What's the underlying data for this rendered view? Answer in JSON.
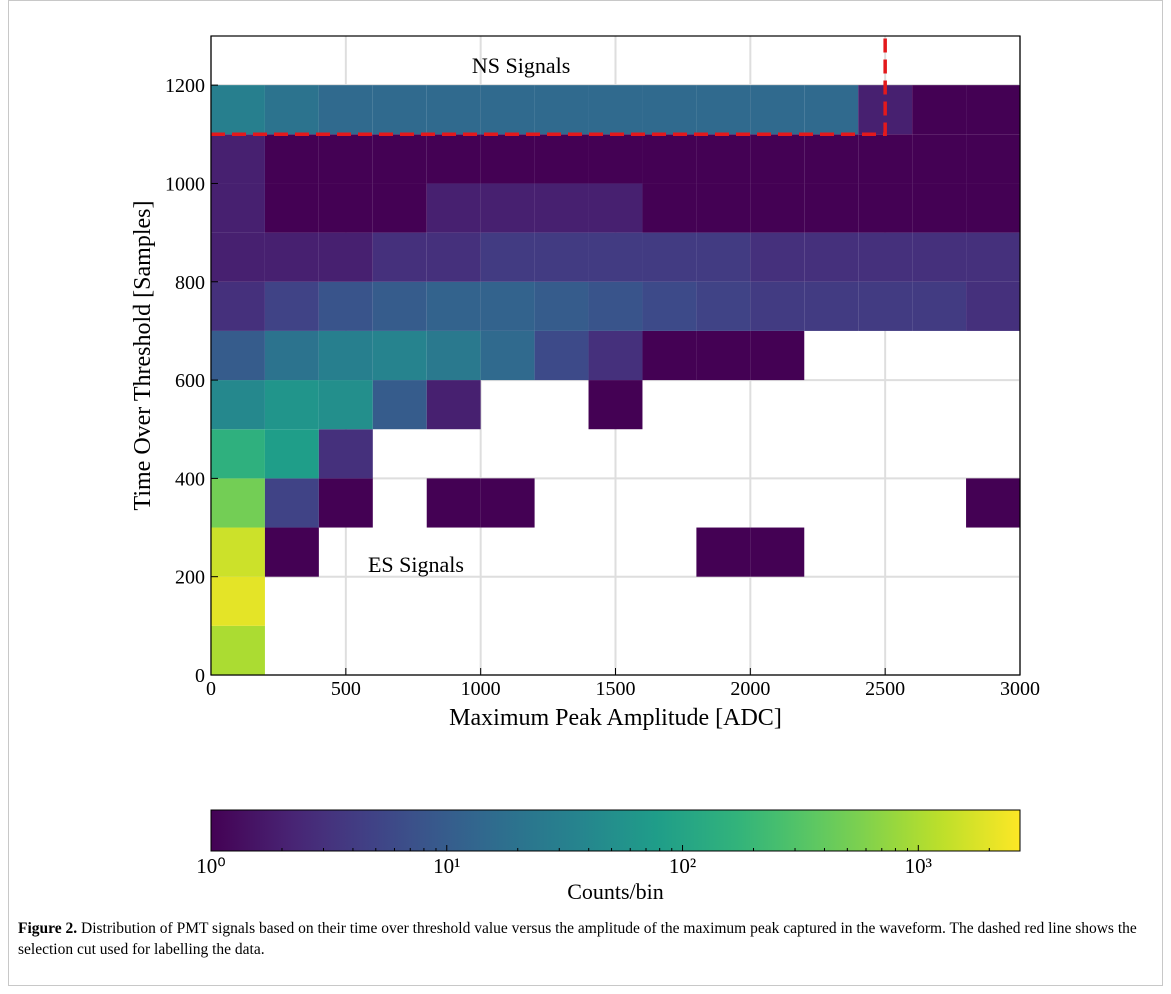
{
  "chart_data": {
    "type": "histogram2d",
    "xlabel": "Maximum Peak Amplitude [ADC]",
    "ylabel": "Time Over Threshold [Samples]",
    "xlim": [
      0,
      3000
    ],
    "ylim": [
      0,
      1300
    ],
    "xticks": [
      0,
      500,
      1000,
      1500,
      2000,
      2500,
      3000
    ],
    "yticks": [
      0,
      200,
      400,
      600,
      800,
      1000,
      1200
    ],
    "grid": true,
    "xbins": [
      0,
      200,
      400,
      600,
      800,
      1000,
      1200,
      1400,
      1600,
      1800,
      2000,
      2200,
      2400,
      2600,
      2800,
      3000
    ],
    "ybins": [
      0,
      100,
      200,
      300,
      400,
      500,
      600,
      700,
      800,
      900,
      1000,
      1100,
      1200,
      1300
    ],
    "counts": [
      [
        1000,
        null,
        null,
        null,
        null,
        null,
        null,
        null,
        null,
        null,
        null,
        null,
        null,
        null,
        null
      ],
      [
        2000,
        null,
        null,
        null,
        null,
        null,
        null,
        null,
        null,
        null,
        null,
        null,
        null,
        null,
        null
      ],
      [
        1500,
        1,
        null,
        null,
        null,
        null,
        null,
        null,
        null,
        1,
        1,
        null,
        null,
        null,
        null
      ],
      [
        500,
        5,
        1,
        null,
        1,
        1,
        null,
        null,
        null,
        null,
        null,
        null,
        null,
        null,
        1
      ],
      [
        150,
        80,
        3,
        null,
        null,
        null,
        null,
        null,
        null,
        null,
        null,
        null,
        null,
        null,
        null
      ],
      [
        40,
        60,
        50,
        10,
        2,
        null,
        null,
        1,
        null,
        null,
        null,
        null,
        null,
        null,
        null
      ],
      [
        10,
        20,
        30,
        35,
        25,
        15,
        6,
        3,
        1,
        1,
        1,
        null,
        null,
        null,
        null
      ],
      [
        3,
        5,
        8,
        10,
        12,
        12,
        10,
        8,
        6,
        5,
        4,
        4,
        4,
        4,
        3
      ],
      [
        2,
        2,
        2,
        3,
        3,
        4,
        4,
        4,
        4,
        4,
        3,
        3,
        3,
        3,
        3
      ],
      [
        2,
        1,
        1,
        1,
        2,
        2,
        2,
        2,
        1,
        1,
        1,
        1,
        1,
        1,
        1
      ],
      [
        2,
        1,
        1,
        1,
        1,
        1,
        1,
        1,
        1,
        1,
        1,
        1,
        1,
        1,
        1
      ],
      [
        30,
        20,
        15,
        15,
        15,
        15,
        15,
        15,
        15,
        15,
        15,
        15,
        2,
        1,
        1
      ],
      [
        null,
        null,
        null,
        null,
        null,
        null,
        null,
        null,
        null,
        null,
        null,
        null,
        null,
        null,
        null
      ]
    ],
    "cut": {
      "x": [
        0,
        2500,
        2500
      ],
      "y": [
        1100,
        1100,
        1300
      ],
      "color": "#e3191c"
    },
    "annotations": [
      {
        "text": "NS Signals",
        "x": 1150,
        "y": 1225
      },
      {
        "text": "ES Signals",
        "x": 760,
        "y": 210
      }
    ],
    "colorbar": {
      "label": "Counts/bin",
      "log": true,
      "clim": [
        1,
        2700
      ],
      "ticks": [
        {
          "value": 1,
          "label": "10⁰"
        },
        {
          "value": 10,
          "label": "10¹"
        },
        {
          "value": 100,
          "label": "10²"
        },
        {
          "value": 1000,
          "label": "10³"
        }
      ]
    }
  },
  "caption": {
    "label": "Figure 2.",
    "text": "Distribution of PMT signals based on their time over threshold value versus the amplitude of the maximum peak captured in the waveform. The dashed red line shows the selection cut used for labelling the data."
  }
}
